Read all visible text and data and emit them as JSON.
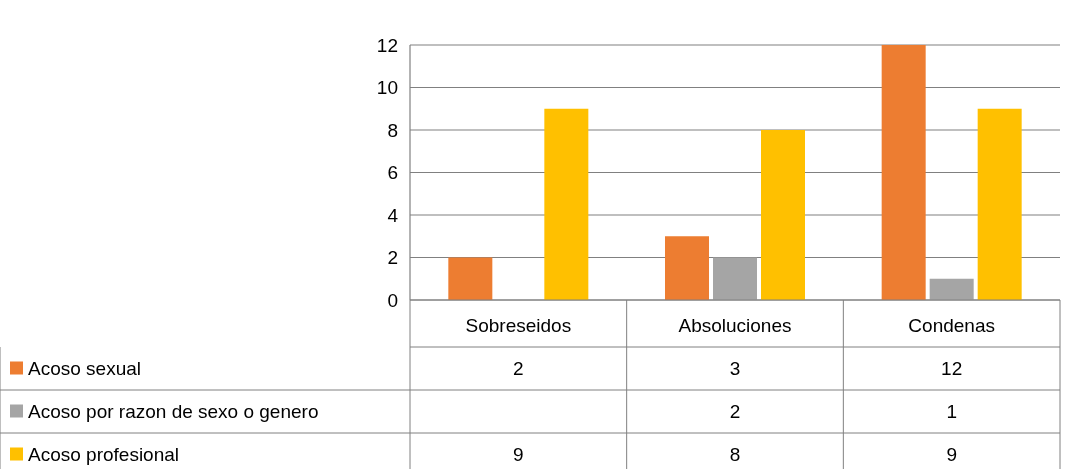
{
  "chart_data": {
    "type": "bar",
    "categories": [
      "Sobreseidos",
      "Absoluciones",
      "Condenas"
    ],
    "series": [
      {
        "name": "Acoso sexual",
        "color": "#ed7d31",
        "values": [
          2,
          3,
          12
        ]
      },
      {
        "name": "Acoso por razon de sexo o genero",
        "color": "#a5a5a5",
        "values": [
          null,
          2,
          1
        ]
      },
      {
        "name": "Acoso profesional",
        "color": "#ffc000",
        "values": [
          9,
          8,
          9
        ]
      }
    ],
    "ylim": [
      0,
      12
    ],
    "yticks": [
      0,
      2,
      4,
      6,
      8,
      10,
      12
    ],
    "grid": "y",
    "legend": "bottom left",
    "data_labels": true
  }
}
